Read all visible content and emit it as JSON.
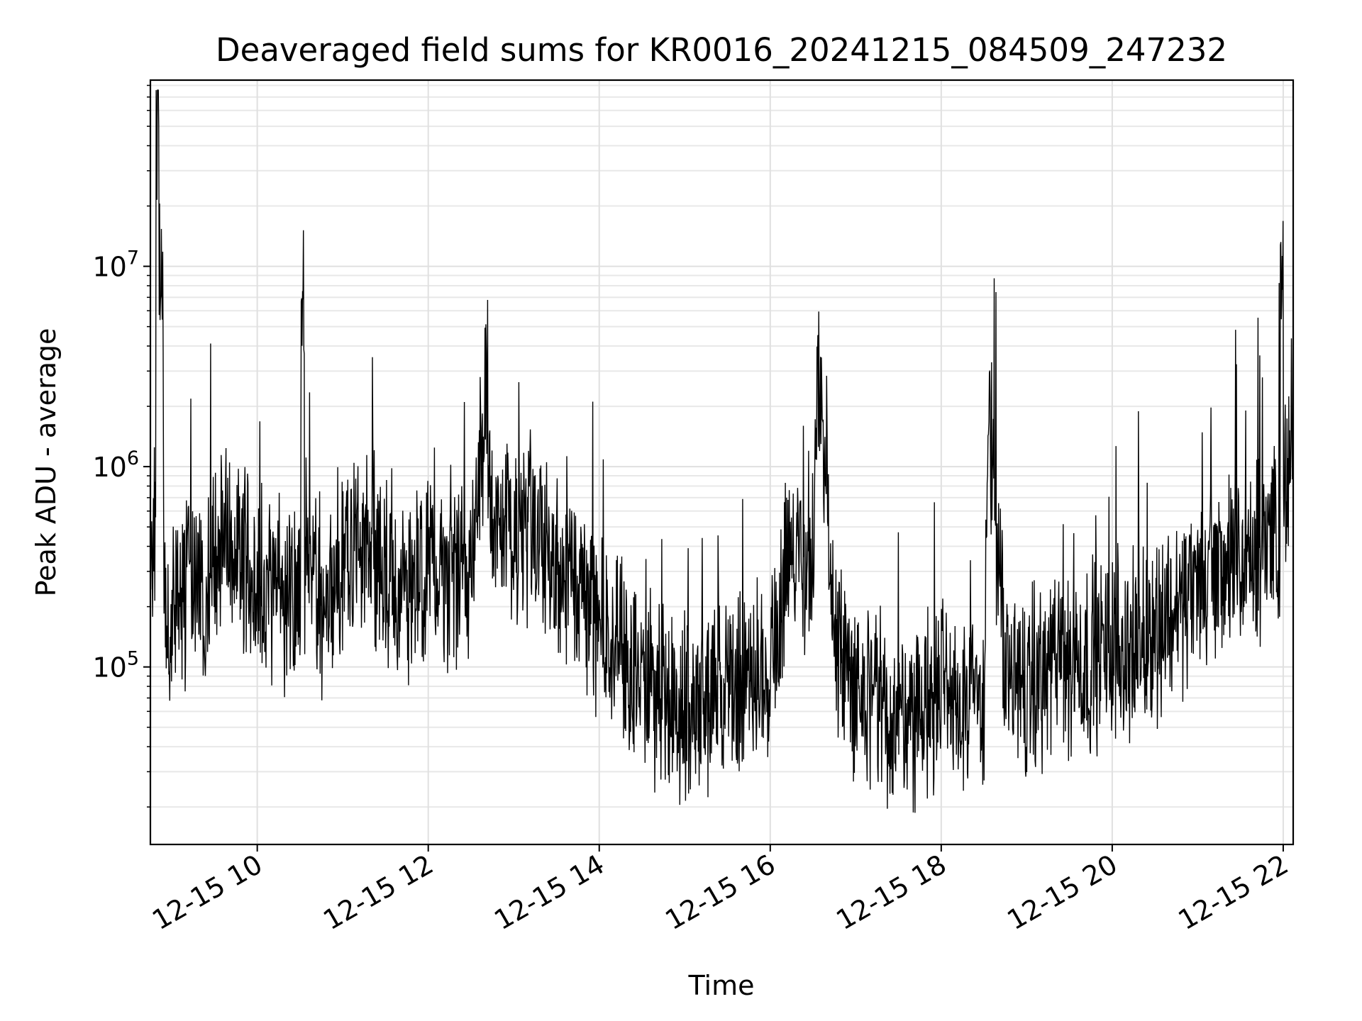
{
  "chart_data": {
    "type": "line",
    "title": "Deaveraged field sums for KR0016_20241215_084509_247232",
    "xlabel": "Time",
    "ylabel": "Peak ADU - average",
    "yscale": "log",
    "ylim": [
      13000,
      85000000
    ],
    "xlim": [
      "2024-12-15 08:45",
      "2024-12-15 22:07"
    ],
    "grid": true,
    "x_ticks": [
      "12-15 10",
      "12-15 12",
      "12-15 14",
      "12-15 16",
      "12-15 18",
      "12-15 20",
      "12-15 22"
    ],
    "y_ticks": [
      {
        "base": "10",
        "exp": "5",
        "value": 100000
      },
      {
        "base": "10",
        "exp": "6",
        "value": 1000000
      },
      {
        "base": "10",
        "exp": "7",
        "value": 10000000
      }
    ],
    "line_color": "#000000",
    "series": [
      {
        "x": [
          "2024-12-15 08:45",
          "2024-12-15 08:47",
          "2024-12-15 08:50",
          "2024-12-15 08:53",
          "2024-12-15 08:55",
          "2024-12-15 08:57",
          "2024-12-15 09:00",
          "2024-12-15 09:10",
          "2024-12-15 09:20",
          "2024-12-15 09:23",
          "2024-12-15 09:30",
          "2024-12-15 09:45",
          "2024-12-15 10:00",
          "2024-12-15 10:15",
          "2024-12-15 10:30",
          "2024-12-15 10:32",
          "2024-12-15 10:45",
          "2024-12-15 11:00",
          "2024-12-15 11:15",
          "2024-12-15 11:30",
          "2024-12-15 11:45",
          "2024-12-15 12:00",
          "2024-12-15 12:15",
          "2024-12-15 12:30",
          "2024-12-15 12:40",
          "2024-12-15 12:45",
          "2024-12-15 13:00",
          "2024-12-15 13:15",
          "2024-12-15 13:30",
          "2024-12-15 13:45",
          "2024-12-15 14:00",
          "2024-12-15 14:15",
          "2024-12-15 14:30",
          "2024-12-15 14:45",
          "2024-12-15 15:00",
          "2024-12-15 15:15",
          "2024-12-15 15:30",
          "2024-12-15 15:45",
          "2024-12-15 16:00",
          "2024-12-15 16:15",
          "2024-12-15 16:30",
          "2024-12-15 16:33",
          "2024-12-15 16:45",
          "2024-12-15 17:00",
          "2024-12-15 17:15",
          "2024-12-15 17:30",
          "2024-12-15 17:45",
          "2024-12-15 18:00",
          "2024-12-15 18:15",
          "2024-12-15 18:30",
          "2024-12-15 18:33",
          "2024-12-15 18:45",
          "2024-12-15 19:00",
          "2024-12-15 19:15",
          "2024-12-15 19:30",
          "2024-12-15 19:45",
          "2024-12-15 20:00",
          "2024-12-15 20:15",
          "2024-12-15 20:30",
          "2024-12-15 20:45",
          "2024-12-15 21:00",
          "2024-12-15 21:15",
          "2024-12-15 21:30",
          "2024-12-15 21:45",
          "2024-12-15 21:59",
          "2024-12-15 22:07"
        ],
        "y": [
          450000,
          350000,
          58000000,
          8800000,
          250000,
          200000,
          180000,
          260000,
          300000,
          200000,
          450000,
          380000,
          280000,
          230000,
          200000,
          5300000,
          180000,
          400000,
          380000,
          320000,
          250000,
          300000,
          280000,
          320000,
          2100000,
          500000,
          420000,
          450000,
          350000,
          250000,
          150000,
          130000,
          90000,
          70000,
          65000,
          75000,
          70000,
          90000,
          110000,
          400000,
          300000,
          2400000,
          150000,
          80000,
          60000,
          55000,
          60000,
          75000,
          65000,
          70000,
          2100000,
          90000,
          80000,
          95000,
          105000,
          110000,
          130000,
          120000,
          160000,
          200000,
          250000,
          330000,
          300000,
          350000,
          7900000,
          600000
        ]
      }
    ]
  }
}
